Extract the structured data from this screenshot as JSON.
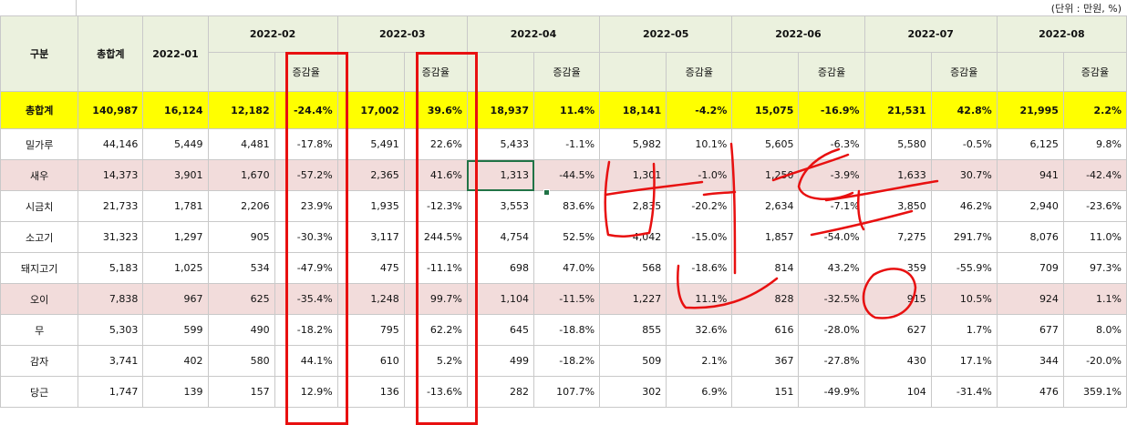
{
  "unit_note": "(단위 : 만원, %)",
  "header": {
    "category": "구분",
    "total": "총합계",
    "rate_label": "증감율",
    "months": [
      "2022-01",
      "2022-02",
      "2022-03",
      "2022-04",
      "2022-05",
      "2022-06",
      "2022-07",
      "2022-08"
    ]
  },
  "total_row": {
    "label": "총합계",
    "cells": [
      "140,987",
      "16,124",
      "12,182",
      "-24.4%",
      "17,002",
      "39.6%",
      "18,937",
      "11.4%",
      "18,141",
      "-4.2%",
      "15,075",
      "-16.9%",
      "21,531",
      "42.8%",
      "21,995",
      "2.2%"
    ]
  },
  "rows": [
    {
      "label": "밀가루",
      "highlight": false,
      "cells": [
        "44,146",
        "5,449",
        "4,481",
        "-17.8%",
        "5,491",
        "22.6%",
        "5,433",
        "-1.1%",
        "5,982",
        "10.1%",
        "5,605",
        "-6.3%",
        "5,580",
        "-0.5%",
        "6,125",
        "9.8%"
      ]
    },
    {
      "label": "새우",
      "highlight": true,
      "cells": [
        "14,373",
        "3,901",
        "1,670",
        "-57.2%",
        "2,365",
        "41.6%",
        "1,313",
        "-44.5%",
        "1,301",
        "-1.0%",
        "1,250",
        "-3.9%",
        "1,633",
        "30.7%",
        "941",
        "-42.4%"
      ]
    },
    {
      "label": "시금치",
      "highlight": false,
      "cells": [
        "21,733",
        "1,781",
        "2,206",
        "23.9%",
        "1,935",
        "-12.3%",
        "3,553",
        "83.6%",
        "2,835",
        "-20.2%",
        "2,634",
        "-7.1%",
        "3,850",
        "46.2%",
        "2,940",
        "-23.6%"
      ]
    },
    {
      "label": "소고기",
      "highlight": false,
      "cells": [
        "31,323",
        "1,297",
        "905",
        "-30.3%",
        "3,117",
        "244.5%",
        "4,754",
        "52.5%",
        "4,042",
        "-15.0%",
        "1,857",
        "-54.0%",
        "7,275",
        "291.7%",
        "8,076",
        "11.0%"
      ]
    },
    {
      "label": "돼지고기",
      "highlight": false,
      "cells": [
        "5,183",
        "1,025",
        "534",
        "-47.9%",
        "475",
        "-11.1%",
        "698",
        "47.0%",
        "568",
        "-18.6%",
        "814",
        "43.2%",
        "359",
        "-55.9%",
        "709",
        "97.3%"
      ]
    },
    {
      "label": "오이",
      "highlight": true,
      "cells": [
        "7,838",
        "967",
        "625",
        "-35.4%",
        "1,248",
        "99.7%",
        "1,104",
        "-11.5%",
        "1,227",
        "11.1%",
        "828",
        "-32.5%",
        "915",
        "10.5%",
        "924",
        "1.1%"
      ]
    },
    {
      "label": "무",
      "highlight": false,
      "cells": [
        "5,303",
        "599",
        "490",
        "-18.2%",
        "795",
        "62.2%",
        "645",
        "-18.8%",
        "855",
        "32.6%",
        "616",
        "-28.0%",
        "627",
        "1.7%",
        "677",
        "8.0%"
      ]
    },
    {
      "label": "감자",
      "highlight": false,
      "cells": [
        "3,741",
        "402",
        "580",
        "44.1%",
        "610",
        "5.2%",
        "499",
        "-18.2%",
        "509",
        "2.1%",
        "367",
        "-27.8%",
        "430",
        "17.1%",
        "344",
        "-20.0%"
      ]
    },
    {
      "label": "당근",
      "highlight": false,
      "cells": [
        "1,747",
        "139",
        "157",
        "12.9%",
        "136",
        "-13.6%",
        "282",
        "107.7%",
        "302",
        "6.9%",
        "151",
        "-49.9%",
        "104",
        "-31.4%",
        "476",
        "359.1%"
      ]
    }
  ],
  "colors": {
    "header_bg": "#ebf1de",
    "total_bg": "#ffff00",
    "highlight_bg": "#f2dcdb",
    "annotation_red": "#e81010",
    "selection_green": "#217346"
  }
}
